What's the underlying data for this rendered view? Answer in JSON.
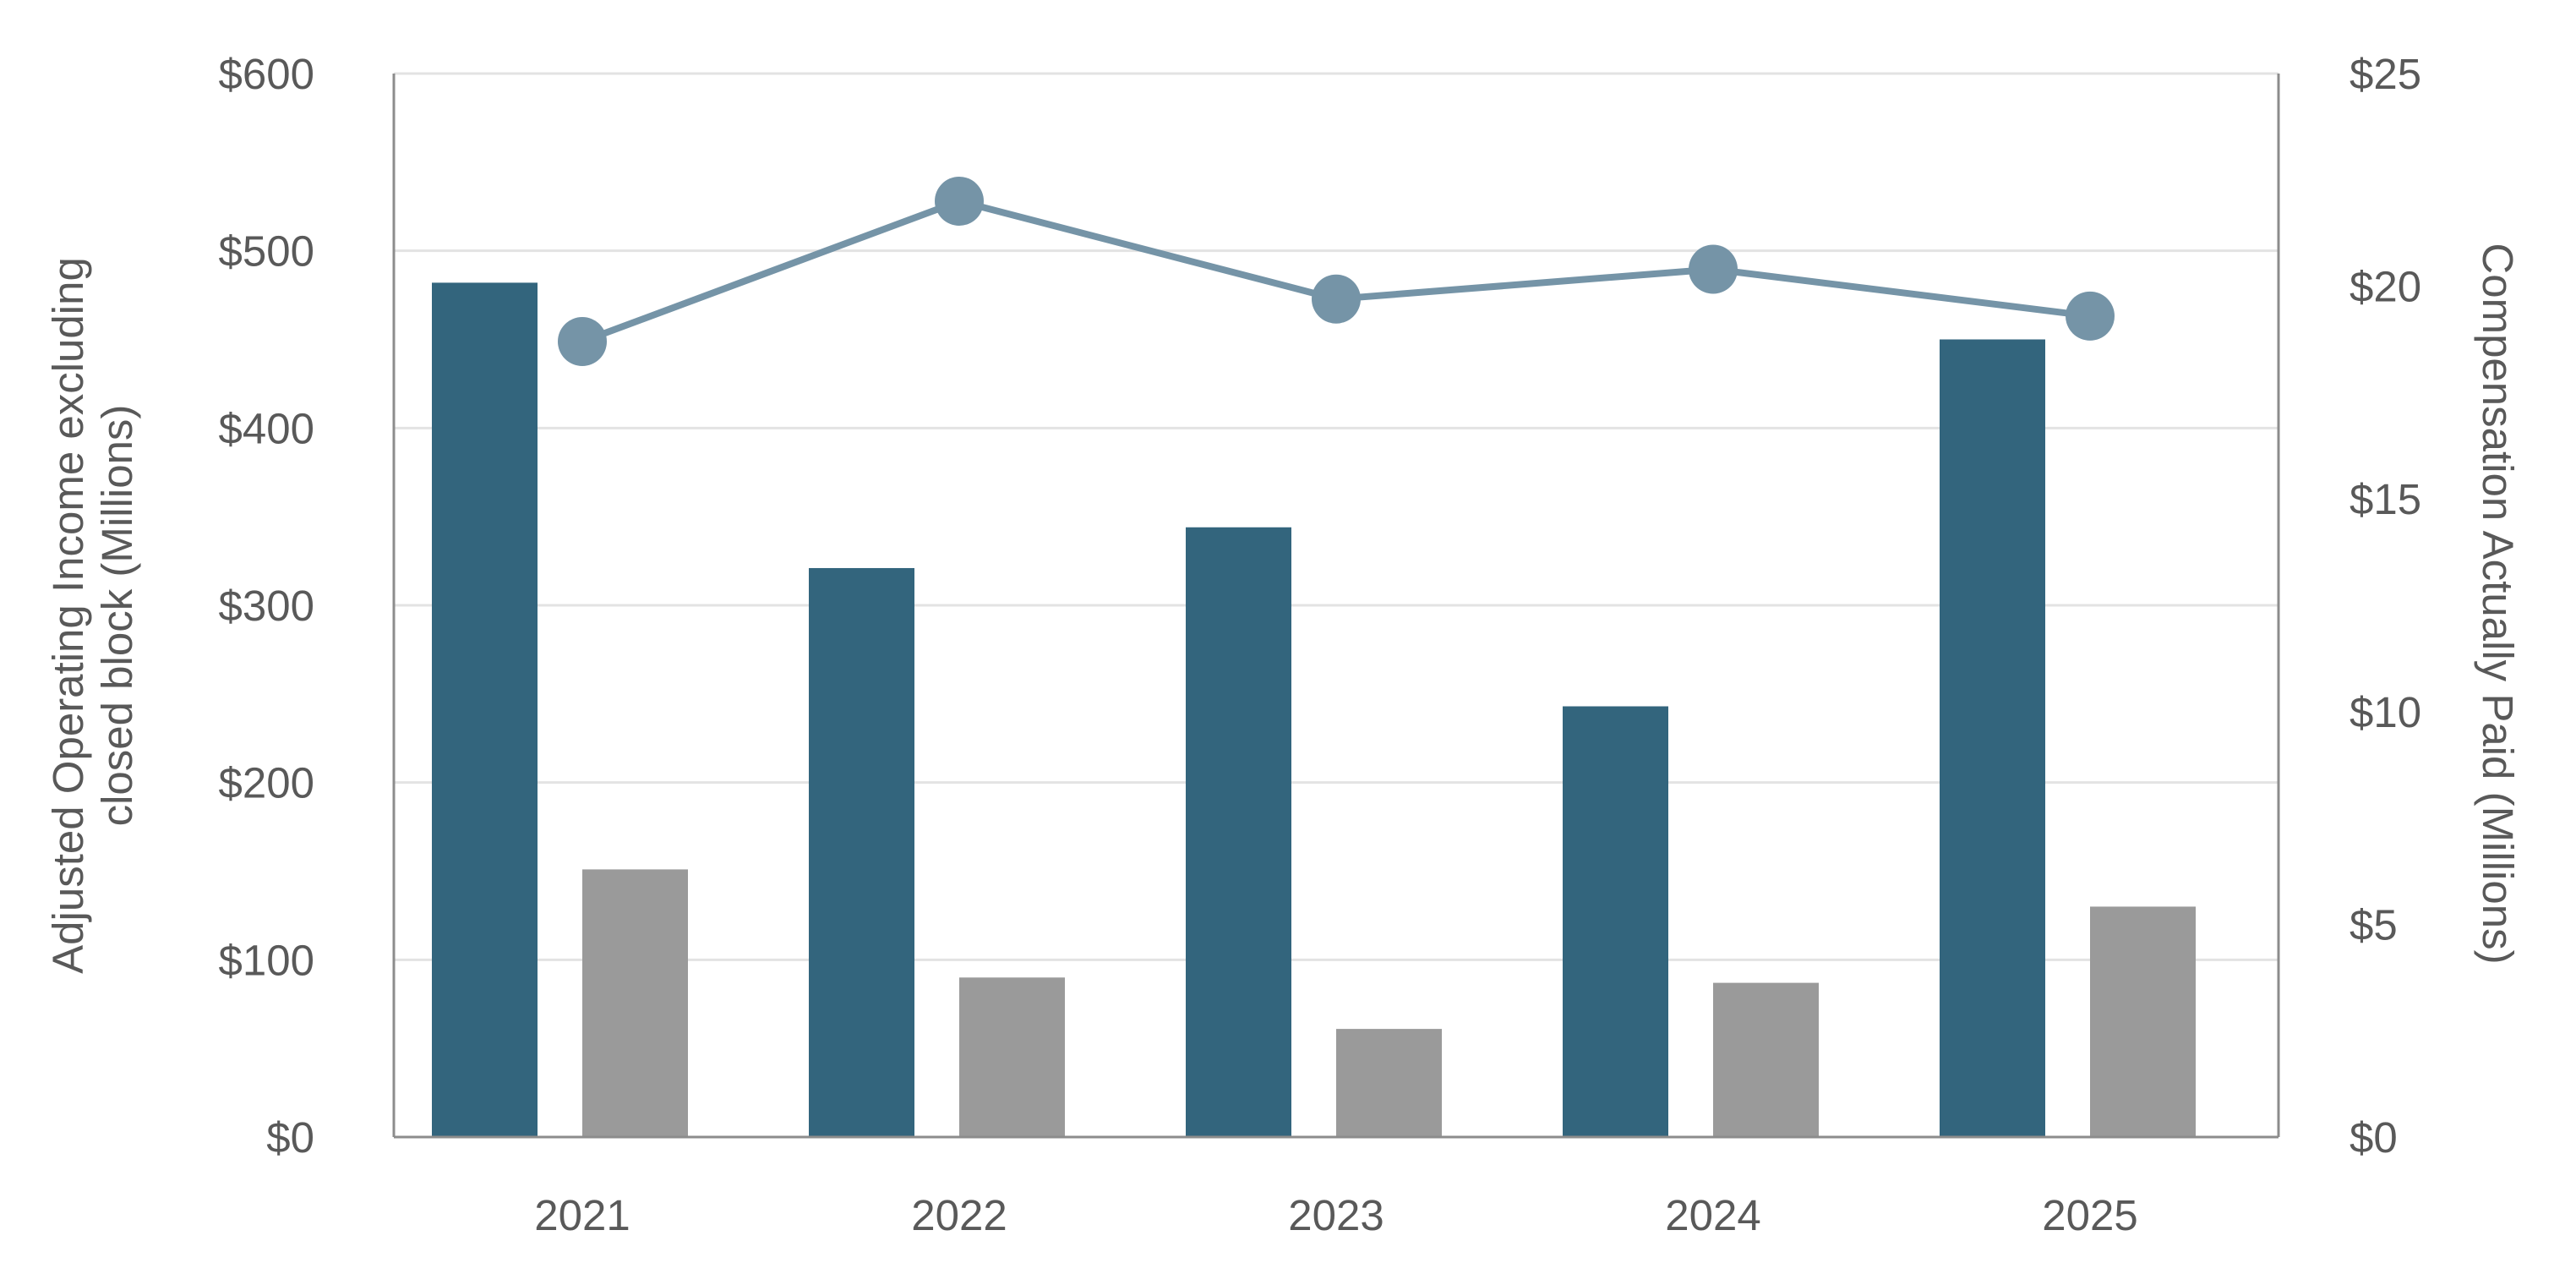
{
  "chart_data": {
    "type": "bar",
    "categories": [
      "2021",
      "2022",
      "2023",
      "2024",
      "2025"
    ],
    "series": [
      {
        "axis": "left",
        "type": "bar",
        "color": "#33657d",
        "values": [
          482,
          321,
          344,
          243,
          450
        ]
      },
      {
        "axis": "left",
        "type": "bar",
        "color": "#9a9a9a",
        "values": [
          151,
          90,
          61,
          87,
          130
        ]
      },
      {
        "axis": "right",
        "type": "line",
        "color": "#7594a7",
        "values": [
          18.7,
          22.0,
          19.7,
          20.4,
          19.3
        ]
      }
    ],
    "y_left": {
      "label_lines": [
        "Adjusted Operating Income excluding",
        "closed block (Millions)"
      ],
      "ticks": [
        "$0",
        "$100",
        "$200",
        "$300",
        "$400",
        "$500",
        "$600"
      ],
      "lim": [
        0,
        600
      ]
    },
    "y_right": {
      "label": "Compensation Actually Paid (Millions)",
      "ticks": [
        "$0",
        "$5",
        "$10",
        "$15",
        "$20",
        "$25"
      ],
      "lim": [
        0,
        25
      ]
    },
    "grid": true,
    "legend": "none"
  }
}
